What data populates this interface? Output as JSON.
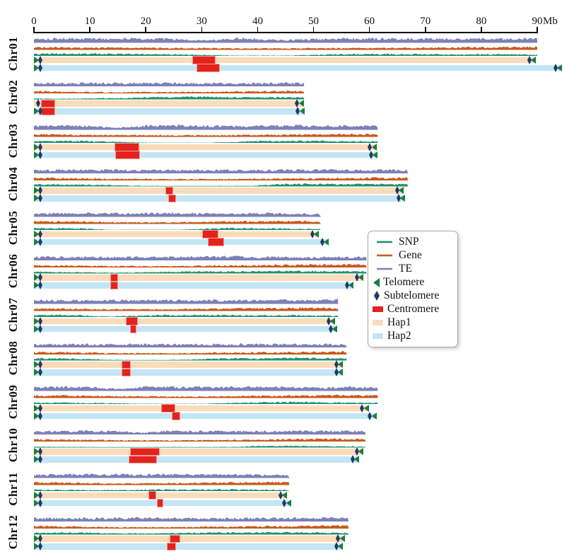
{
  "figure": {
    "title": "",
    "kind": "haplotype-resolved genome assembly overview"
  },
  "axis": {
    "unit_label": "Mb",
    "ticks": [
      0,
      10,
      20,
      30,
      40,
      50,
      60,
      70,
      80,
      90
    ],
    "min": 0,
    "max": 90
  },
  "legend": {
    "position": "middle-right",
    "items": [
      {
        "label": "SNP",
        "swatch": "line",
        "color": "#219270"
      },
      {
        "label": "Gene",
        "swatch": "line",
        "color": "#c85a1d"
      },
      {
        "label": "TE",
        "swatch": "line",
        "color": "#7d81b7"
      },
      {
        "label": "Telomere",
        "swatch": "triangle",
        "color": "#157f3d"
      },
      {
        "label": "Subtelomere",
        "swatch": "diamond",
        "color": "#22386b"
      },
      {
        "label": "Centromere",
        "swatch": "rect",
        "color": "#e3231c"
      },
      {
        "label": "Hap1",
        "swatch": "rect",
        "color": "#fadcbb"
      },
      {
        "label": "Hap2",
        "swatch": "rect",
        "color": "#c3e5f4"
      }
    ]
  },
  "colors": {
    "te": "#7d81b7",
    "gene": "#c85a1d",
    "snp": "#219270",
    "hap1": "#fadcbb",
    "hap2": "#c3e5f4",
    "telomere": "#157f3d",
    "subtelomere": "#22386b",
    "centromere": "#e3231c",
    "axis": "#000000"
  },
  "chart_data": {
    "type": "area",
    "description": "Per-chromosome density tracks (TE, Gene, SNP) above Hap1/Hap2 chromosome bars with telomere, subtelomere and centromere markers. X axis in Mb (0-90).",
    "unit": "Mb",
    "xlim": [
      0,
      90
    ],
    "tracks": [
      "TE",
      "Gene",
      "SNP"
    ],
    "chromosomes": [
      {
        "name": "Chr01",
        "track_length_mb": 90.0,
        "hap1": {
          "length_mb": 89.7,
          "centromere_mb": [
            28.3,
            32.5
          ],
          "left_markers": [
            "telomere",
            "subtelomere"
          ],
          "right_markers": [
            "subtelomere",
            "telomere"
          ]
        },
        "hap2": {
          "length_mb": 94.4,
          "centromere_mb": [
            29.1,
            33.2
          ],
          "left_markers": [
            "telomere",
            "subtelomere"
          ],
          "right_markers": [
            "subtelomere",
            "telomere"
          ]
        },
        "te_profile": [
          0.72,
          0.75,
          0.7,
          0.74,
          0.42,
          0.74,
          0.48,
          0.72,
          0.75,
          0.7,
          0.66,
          0.7,
          0.72
        ],
        "gene_profile": [
          0.55,
          0.5,
          0.46,
          0.42,
          0.4,
          0.36,
          0.33,
          0.36,
          0.42,
          0.46,
          0.54,
          0.6,
          0.66
        ],
        "snp_profile": [
          0.5,
          0.55,
          0.5,
          0.45,
          0.3,
          0.12,
          0.15,
          0.4,
          0.5,
          0.45,
          0.4,
          0.45,
          0.4
        ]
      },
      {
        "name": "Chr02",
        "track_length_mb": 48.3,
        "hap1": {
          "length_mb": 48.2,
          "centromere_mb": [
            1.3,
            3.8
          ],
          "left_markers": [
            "subtelomere"
          ],
          "right_markers": [
            "subtelomere",
            "telomere"
          ]
        },
        "hap2": {
          "length_mb": 48.3,
          "centromere_mb": [
            1.3,
            3.8
          ],
          "left_markers": [
            "telomere",
            "subtelomere"
          ],
          "right_markers": [
            "subtelomere",
            "telomere"
          ]
        },
        "te_profile": [
          0.6,
          0.64,
          0.6,
          0.62,
          0.58,
          0.6,
          0.63,
          0.6,
          0.58,
          0.62,
          0.6,
          0.63,
          0.6
        ],
        "gene_profile": [
          0.6,
          0.45,
          0.4,
          0.36,
          0.34,
          0.36,
          0.38,
          0.4,
          0.42,
          0.46,
          0.5,
          0.55,
          0.6
        ],
        "snp_profile": [
          0.2,
          0.15,
          0.18,
          0.25,
          0.3,
          0.45,
          0.5,
          0.55,
          0.5,
          0.45,
          0.5,
          0.45,
          0.4
        ]
      },
      {
        "name": "Chr03",
        "track_length_mb": 61.5,
        "hap1": {
          "length_mb": 61.2,
          "centromere_mb": [
            14.4,
            18.8
          ],
          "left_markers": [
            "telomere",
            "subtelomere"
          ],
          "right_markers": [
            "subtelomere",
            "telomere"
          ]
        },
        "hap2": {
          "length_mb": 61.4,
          "centromere_mb": [
            14.5,
            19.0
          ],
          "left_markers": [
            "telomere",
            "subtelomere"
          ],
          "right_markers": [
            "subtelomere",
            "telomere"
          ]
        },
        "te_profile": [
          0.66,
          0.7,
          0.66,
          0.36,
          0.7,
          0.72,
          0.68,
          0.66,
          0.7,
          0.72,
          0.68,
          0.66,
          0.7
        ],
        "gene_profile": [
          0.56,
          0.5,
          0.44,
          0.38,
          0.35,
          0.33,
          0.36,
          0.4,
          0.44,
          0.5,
          0.55,
          0.6,
          0.64
        ],
        "snp_profile": [
          0.4,
          0.5,
          0.45,
          0.3,
          0.15,
          0.1,
          0.12,
          0.3,
          0.5,
          0.55,
          0.5,
          0.45,
          0.4
        ]
      },
      {
        "name": "Chr04",
        "track_length_mb": 66.9,
        "hap1": {
          "length_mb": 66.1,
          "centromere_mb": [
            23.5,
            24.9
          ],
          "left_markers": [
            "telomere",
            "subtelomere"
          ],
          "right_markers": [
            "subtelomere",
            "telomere"
          ]
        },
        "hap2": {
          "length_mb": 66.3,
          "centromere_mb": [
            24.0,
            25.4
          ],
          "left_markers": [
            "telomere",
            "subtelomere"
          ],
          "right_markers": [
            "subtelomere",
            "telomere"
          ]
        },
        "te_profile": [
          0.6,
          0.63,
          0.66,
          0.6,
          0.62,
          0.6,
          0.64,
          0.6,
          0.62,
          0.66,
          0.6,
          0.63,
          0.6
        ],
        "gene_profile": [
          0.6,
          0.55,
          0.46,
          0.4,
          0.36,
          0.34,
          0.36,
          0.4,
          0.46,
          0.52,
          0.56,
          0.62,
          0.66
        ],
        "snp_profile": [
          0.45,
          0.4,
          0.35,
          0.2,
          0.12,
          0.1,
          0.12,
          0.15,
          0.5,
          0.55,
          0.45,
          0.5,
          0.45
        ]
      },
      {
        "name": "Chr05",
        "track_length_mb": 51.3,
        "hap1": {
          "length_mb": 50.9,
          "centromere_mb": [
            30.1,
            33.0
          ],
          "left_markers": [
            "telomere",
            "subtelomere"
          ],
          "right_markers": [
            "subtelomere",
            "telomere"
          ]
        },
        "hap2": {
          "length_mb": 52.7,
          "centromere_mb": [
            31.1,
            34.0
          ],
          "left_markers": [
            "telomere",
            "subtelomere"
          ],
          "right_markers": [
            "subtelomere",
            "telomere"
          ]
        },
        "te_profile": [
          0.58,
          0.62,
          0.64,
          0.6,
          0.58,
          0.62,
          0.64,
          0.6,
          0.58,
          0.6,
          0.56,
          0.52,
          0.46
        ],
        "gene_profile": [
          0.6,
          0.54,
          0.48,
          0.4,
          0.36,
          0.34,
          0.36,
          0.42,
          0.5,
          0.56,
          0.6,
          0.64,
          0.6
        ],
        "snp_profile": [
          0.5,
          0.45,
          0.4,
          0.15,
          0.1,
          0.1,
          0.12,
          0.3,
          0.5,
          0.45,
          0.4,
          0.35,
          0.3
        ]
      },
      {
        "name": "Chr06",
        "track_length_mb": 59.5,
        "hap1": {
          "length_mb": 58.9,
          "centromere_mb": [
            13.6,
            15.1
          ],
          "left_markers": [
            "telomere",
            "subtelomere"
          ],
          "right_markers": [
            "subtelomere",
            "telomere"
          ]
        },
        "hap2": {
          "length_mb": 57.1,
          "centromere_mb": [
            13.6,
            15.1
          ],
          "left_markers": [
            "telomere",
            "subtelomere"
          ],
          "right_markers": [
            "subtelomere",
            "telomere"
          ]
        },
        "te_profile": [
          0.6,
          0.63,
          0.6,
          0.64,
          0.6,
          0.62,
          0.66,
          0.72,
          0.62,
          0.63,
          0.6,
          0.64,
          0.6
        ],
        "gene_profile": [
          0.52,
          0.46,
          0.42,
          0.38,
          0.36,
          0.4,
          0.44,
          0.5,
          0.54,
          0.6,
          0.64,
          0.66,
          0.7
        ],
        "snp_profile": [
          0.35,
          0.3,
          0.25,
          0.2,
          0.25,
          0.4,
          0.45,
          0.4,
          0.5,
          0.55,
          0.5,
          0.45,
          0.4
        ]
      },
      {
        "name": "Chr07",
        "track_length_mb": 54.4,
        "hap1": {
          "length_mb": 53.8,
          "centromere_mb": [
            16.4,
            18.6
          ],
          "left_markers": [
            "telomere",
            "subtelomere"
          ],
          "right_markers": [
            "subtelomere",
            "telomere"
          ]
        },
        "hap2": {
          "length_mb": 54.2,
          "centromere_mb": [
            17.2,
            18.3
          ],
          "left_markers": [
            "telomere",
            "subtelomere"
          ],
          "right_markers": [
            "subtelomere",
            "telomere"
          ]
        },
        "te_profile": [
          0.62,
          0.64,
          0.6,
          0.63,
          0.6,
          0.64,
          0.6,
          0.63,
          0.6,
          0.62,
          0.66,
          0.62,
          0.78
        ],
        "gene_profile": [
          0.56,
          0.5,
          0.44,
          0.38,
          0.36,
          0.34,
          0.4,
          0.46,
          0.52,
          0.58,
          0.62,
          0.66,
          0.6
        ],
        "snp_profile": [
          0.45,
          0.5,
          0.4,
          0.2,
          0.35,
          0.5,
          0.45,
          0.5,
          0.45,
          0.4,
          0.45,
          0.4,
          0.35
        ]
      },
      {
        "name": "Chr08",
        "track_length_mb": 55.9,
        "hap1": {
          "length_mb": 55.2,
          "centromere_mb": [
            15.7,
            17.3
          ],
          "left_markers": [
            "telomere",
            "subtelomere"
          ],
          "right_markers": [
            "subtelomere",
            "telomere"
          ]
        },
        "hap2": {
          "length_mb": 55.2,
          "centromere_mb": [
            15.7,
            17.3
          ],
          "left_markers": [
            "telomere",
            "subtelomere"
          ],
          "right_markers": [
            "subtelomere",
            "telomere"
          ]
        },
        "te_profile": [
          0.56,
          0.6,
          0.58,
          0.6,
          0.63,
          0.6,
          0.58,
          0.6,
          0.63,
          0.6,
          0.58,
          0.6,
          0.56
        ],
        "gene_profile": [
          0.6,
          0.52,
          0.46,
          0.4,
          0.36,
          0.34,
          0.38,
          0.44,
          0.5,
          0.56,
          0.6,
          0.64,
          0.66
        ],
        "snp_profile": [
          0.45,
          0.5,
          0.3,
          0.15,
          0.1,
          0.12,
          0.2,
          0.4,
          0.45,
          0.5,
          0.55,
          0.5,
          0.45
        ]
      },
      {
        "name": "Chr09",
        "track_length_mb": 61.5,
        "hap1": {
          "length_mb": 59.8,
          "centromere_mb": [
            22.8,
            25.3
          ],
          "left_markers": [
            "telomere",
            "subtelomere"
          ],
          "right_markers": [
            "subtelomere",
            "telomere"
          ]
        },
        "hap2": {
          "length_mb": 61.2,
          "centromere_mb": [
            24.7,
            26.2
          ],
          "left_markers": [
            "telomere",
            "subtelomere"
          ],
          "right_markers": [
            "subtelomere",
            "telomere"
          ]
        },
        "te_profile": [
          0.66,
          0.68,
          0.64,
          0.34,
          0.68,
          0.66,
          0.7,
          0.68,
          0.66,
          0.68,
          0.52,
          0.66,
          0.6
        ],
        "gene_profile": [
          0.5,
          0.56,
          0.44,
          0.38,
          0.34,
          0.33,
          0.36,
          0.4,
          0.46,
          0.5,
          0.56,
          0.6,
          0.56
        ],
        "snp_profile": [
          0.4,
          0.35,
          0.3,
          0.2,
          0.15,
          0.12,
          0.15,
          0.3,
          0.45,
          0.5,
          0.45,
          0.4,
          0.35
        ]
      },
      {
        "name": "Chr10",
        "track_length_mb": 59.4,
        "hap1": {
          "length_mb": 58.9,
          "centromere_mb": [
            17.2,
            22.5
          ],
          "left_markers": [
            "telomere",
            "subtelomere"
          ],
          "right_markers": [
            "subtelomere",
            "telomere"
          ]
        },
        "hap2": {
          "length_mb": 58.1,
          "centromere_mb": [
            17.0,
            22.0
          ],
          "left_markers": [
            "telomere",
            "subtelomere"
          ],
          "right_markers": [
            "subtelomere",
            "telomere"
          ]
        },
        "te_profile": [
          0.6,
          0.62,
          0.66,
          0.6,
          0.34,
          0.66,
          0.62,
          0.6,
          0.64,
          0.6,
          0.62,
          0.66,
          0.6
        ],
        "gene_profile": [
          0.55,
          0.5,
          0.44,
          0.38,
          0.34,
          0.33,
          0.36,
          0.42,
          0.48,
          0.54,
          0.6,
          0.64,
          0.6
        ],
        "snp_profile": [
          0.2,
          0.15,
          0.12,
          0.1,
          0.1,
          0.12,
          0.1,
          0.12,
          0.3,
          0.35,
          0.3,
          0.25,
          0.2
        ]
      },
      {
        "name": "Chr11",
        "track_length_mb": 45.7,
        "hap1": {
          "length_mb": 45.2,
          "centromere_mb": [
            20.5,
            21.9
          ],
          "left_markers": [
            "telomere",
            "subtelomere"
          ],
          "right_markers": [
            "subtelomere",
            "telomere"
          ]
        },
        "hap2": {
          "length_mb": 45.9,
          "centromere_mb": [
            22.0,
            23.1
          ],
          "left_markers": [
            "telomere",
            "subtelomere"
          ],
          "right_markers": [
            "subtelomere",
            "telomere"
          ]
        },
        "te_profile": [
          0.52,
          0.56,
          0.6,
          0.63,
          0.6,
          0.58,
          0.6,
          0.63,
          0.6,
          0.58,
          0.56,
          0.5,
          0.46
        ],
        "gene_profile": [
          0.6,
          0.54,
          0.48,
          0.42,
          0.38,
          0.36,
          0.4,
          0.46,
          0.52,
          0.56,
          0.6,
          0.63,
          0.6
        ],
        "snp_profile": [
          0.4,
          0.35,
          0.3,
          0.25,
          0.3,
          0.35,
          0.4,
          0.45,
          0.4,
          0.45,
          0.4,
          0.35,
          0.3
        ]
      },
      {
        "name": "Chr12",
        "track_length_mb": 56.3,
        "hap1": {
          "length_mb": 55.5,
          "centromere_mb": [
            24.3,
            26.2
          ],
          "left_markers": [
            "telomere",
            "subtelomere"
          ],
          "right_markers": [
            "subtelomere",
            "telomere"
          ]
        },
        "hap2": {
          "length_mb": 55.2,
          "centromere_mb": [
            23.8,
            25.4
          ],
          "left_markers": [
            "telomere",
            "subtelomere"
          ],
          "right_markers": [
            "subtelomere",
            "telomere"
          ]
        },
        "te_profile": [
          0.6,
          0.63,
          0.6,
          0.62,
          0.66,
          0.6,
          0.63,
          0.6,
          0.62,
          0.6,
          0.66,
          0.62,
          0.78
        ],
        "gene_profile": [
          0.6,
          0.54,
          0.46,
          0.4,
          0.36,
          0.38,
          0.42,
          0.48,
          0.54,
          0.58,
          0.62,
          0.66,
          0.7
        ],
        "snp_profile": [
          0.4,
          0.45,
          0.4,
          0.3,
          0.25,
          0.3,
          0.35,
          0.45,
          0.4,
          0.5,
          0.45,
          0.4,
          0.35
        ]
      }
    ]
  }
}
